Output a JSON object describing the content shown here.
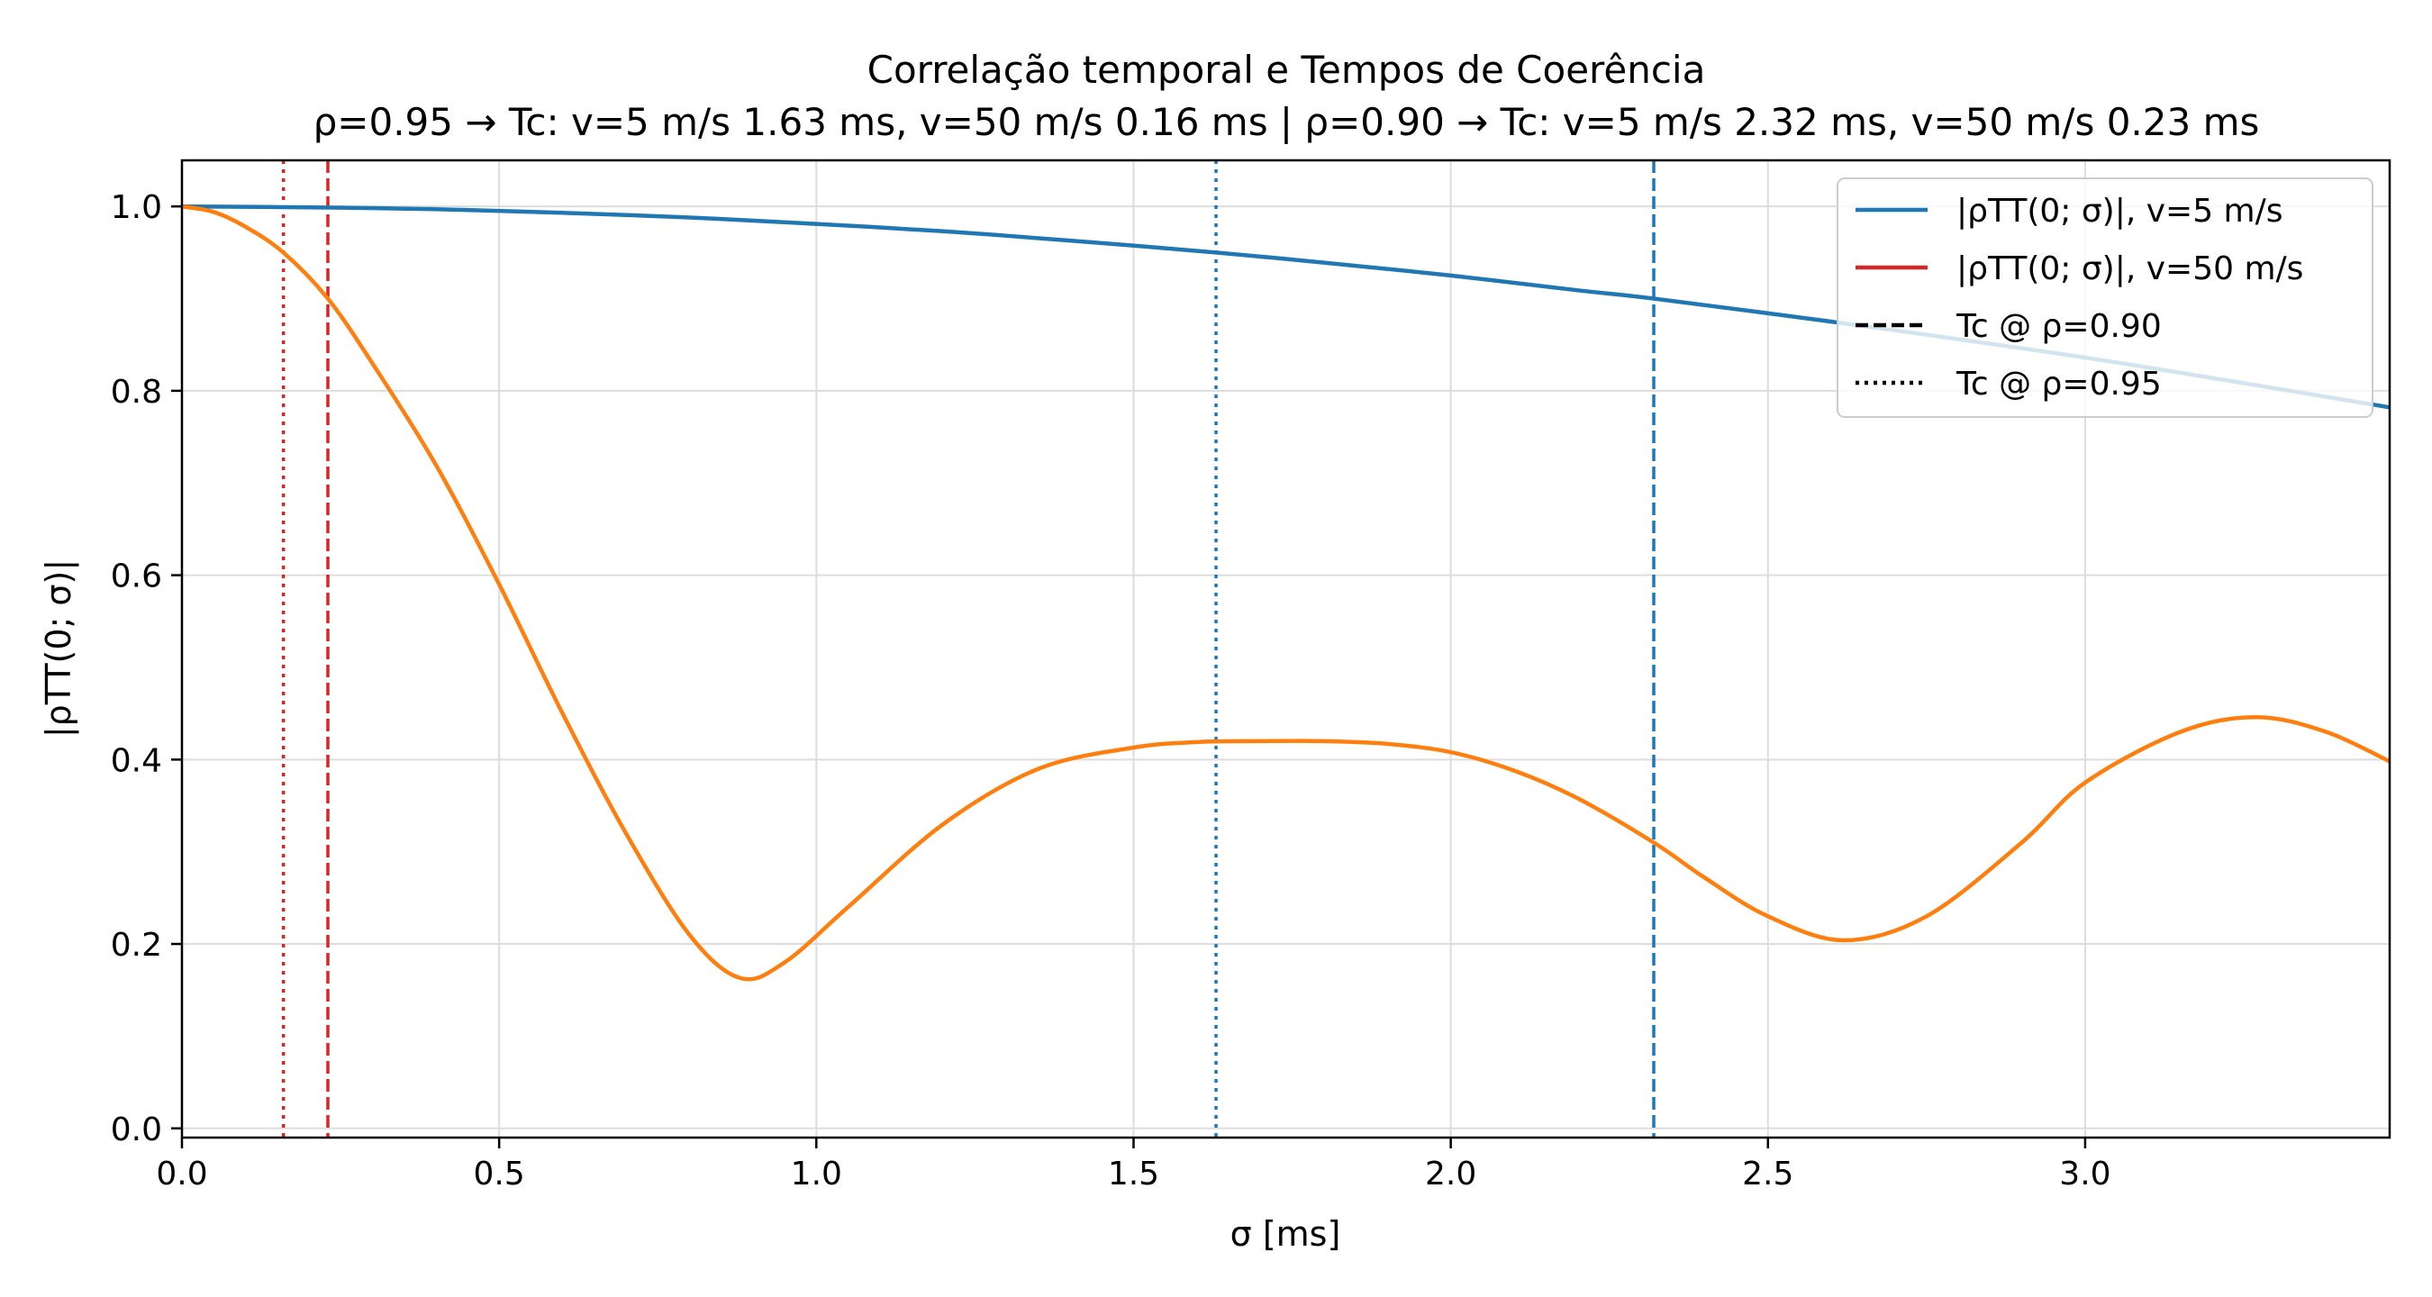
{
  "chart_data": {
    "type": "line",
    "title": "Correlação temporal e Tempos de Coerência",
    "subtitle": "ρ=0.95 → Tc: v=5 m/s 1.63 ms, v=50 m/s 0.16 ms | ρ=0.90 → Tc: v=5 m/s 2.32 ms, v=50 m/s 0.23 ms",
    "xlabel": "σ [ms]",
    "ylabel": "|ρTT(0; σ)|",
    "xlim": [
      0,
      3.48
    ],
    "ylim": [
      -0.01,
      1.05
    ],
    "xticks": [
      0.0,
      0.5,
      1.0,
      1.5,
      2.0,
      2.5,
      3.0
    ],
    "xtick_labels": [
      "0.0",
      "0.5",
      "1.0",
      "1.5",
      "2.0",
      "2.5",
      "3.0"
    ],
    "yticks": [
      0.0,
      0.2,
      0.4,
      0.6,
      0.8,
      1.0
    ],
    "ytick_labels": [
      "0.0",
      "0.2",
      "0.4",
      "0.6",
      "0.8",
      "1.0"
    ],
    "grid": true,
    "legend_position": "top-right",
    "colors": {
      "v5": "#1f77b4",
      "v50_line": "#ff7f0e",
      "v50_legend": "#d62728",
      "axis": "#000000",
      "grid": "#dddddd"
    },
    "series": [
      {
        "name": "|ρTT(0; σ)|, v=5 m/s",
        "color": "#1f77b4",
        "x": [
          0,
          0.2,
          0.4,
          0.6,
          0.8,
          1.0,
          1.2,
          1.4,
          1.63,
          1.8,
          2.0,
          2.2,
          2.32,
          2.6,
          2.8,
          3.0,
          3.2,
          3.48
        ],
        "y": [
          1.0,
          0.999,
          0.997,
          0.993,
          0.988,
          0.981,
          0.973,
          0.963,
          0.95,
          0.939,
          0.925,
          0.909,
          0.9,
          0.875,
          0.856,
          0.836,
          0.814,
          0.782
        ]
      },
      {
        "name": "|ρTT(0; σ)|, v=50 m/s",
        "color": "#ff7f0e",
        "x": [
          0,
          0.05,
          0.1,
          0.16,
          0.23,
          0.3,
          0.4,
          0.5,
          0.6,
          0.7,
          0.8,
          0.88,
          0.95,
          1.05,
          1.2,
          1.35,
          1.5,
          1.6,
          1.7,
          1.8,
          1.9,
          2.0,
          2.1,
          2.2,
          2.32,
          2.4,
          2.5,
          2.62,
          2.75,
          2.9,
          3.0,
          3.15,
          3.27,
          3.38,
          3.48
        ],
        "y": [
          1.0,
          0.994,
          0.978,
          0.95,
          0.9,
          0.83,
          0.72,
          0.59,
          0.45,
          0.32,
          0.21,
          0.163,
          0.18,
          0.24,
          0.33,
          0.39,
          0.413,
          0.419,
          0.42,
          0.42,
          0.417,
          0.408,
          0.388,
          0.358,
          0.31,
          0.272,
          0.23,
          0.204,
          0.23,
          0.31,
          0.375,
          0.43,
          0.446,
          0.43,
          0.398
        ]
      }
    ],
    "vlines": [
      {
        "x": 1.63,
        "color": "#1f77b4",
        "style": "dotted"
      },
      {
        "x": 2.32,
        "color": "#1f77b4",
        "style": "dashed"
      },
      {
        "x": 0.16,
        "color": "#d62728",
        "style": "dotted"
      },
      {
        "x": 0.23,
        "color": "#d62728",
        "style": "dashed"
      }
    ],
    "legend": [
      {
        "label": "|ρTT(0; σ)|, v=5 m/s",
        "color": "#1f77b4",
        "style": "solid"
      },
      {
        "label": "|ρTT(0; σ)|, v=50 m/s",
        "color": "#d62728",
        "style": "solid"
      },
      {
        "label": "Tc @ ρ=0.90",
        "color": "#000000",
        "style": "dashed"
      },
      {
        "label": "Tc @ ρ=0.95",
        "color": "#000000",
        "style": "dotted"
      }
    ]
  }
}
